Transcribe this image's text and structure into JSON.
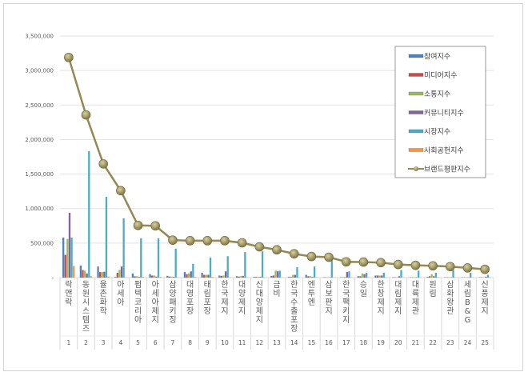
{
  "chart_data": {
    "type": "bar+line",
    "title": "",
    "xlabel": "",
    "ylabel": "",
    "ylim": [
      0,
      3500000
    ],
    "yticks": [
      "-",
      "500,000",
      "1,000,000",
      "1,500,000",
      "2,000,000",
      "2,500,000",
      "3,000,000",
      "3,500,000"
    ],
    "grid": true,
    "legend_position": "top-right",
    "categories": [
      "락앤락",
      "동원시스템즈",
      "율촌화학",
      "아세아",
      "펌텍코리아",
      "아세아제지",
      "삼양패키징",
      "대영포장",
      "태림포장",
      "한국제지",
      "대양제지",
      "신대양제지",
      "금비",
      "한국수출포장",
      "엔투엔",
      "삼보판지",
      "한국팩키지",
      "승일",
      "한창제지",
      "대림제지",
      "대륙제관",
      "원림",
      "삼화왕관",
      "세림B&G",
      "신풍제지"
    ],
    "ranks": [
      "1",
      "2",
      "3",
      "4",
      "5",
      "6",
      "7",
      "8",
      "9",
      "10",
      "11",
      "12",
      "13",
      "14",
      "15",
      "16",
      "17",
      "18",
      "19",
      "20",
      "21",
      "22",
      "23",
      "24",
      "25"
    ],
    "series": [
      {
        "name": "참여지수",
        "type": "bar",
        "color": "#4f81bd",
        "values": [
          580000,
          175000,
          160000,
          10000,
          60000,
          50000,
          25000,
          80000,
          70000,
          30000,
          20000,
          10000,
          25000,
          10000,
          40000,
          5000,
          5000,
          20000,
          30000,
          5000,
          5000,
          10000,
          5000,
          5000,
          5000
        ]
      },
      {
        "name": "미디어지수",
        "type": "bar",
        "color": "#c0504d",
        "values": [
          330000,
          110000,
          80000,
          70000,
          20000,
          30000,
          15000,
          50000,
          40000,
          25000,
          15000,
          10000,
          30000,
          10000,
          20000,
          5000,
          5000,
          20000,
          30000,
          5000,
          5000,
          20000,
          5000,
          5000,
          5000
        ]
      },
      {
        "name": "소통지수",
        "type": "bar",
        "color": "#9bbb59",
        "values": [
          560000,
          100000,
          80000,
          110000,
          20000,
          30000,
          15000,
          60000,
          40000,
          30000,
          20000,
          10000,
          100000,
          40000,
          20000,
          5000,
          10000,
          60000,
          30000,
          5000,
          5000,
          50000,
          5000,
          5000,
          5000
        ]
      },
      {
        "name": "커뮤니티지수",
        "type": "bar",
        "color": "#8064a2",
        "values": [
          940000,
          60000,
          85000,
          160000,
          10000,
          15000,
          10000,
          90000,
          40000,
          90000,
          25000,
          10000,
          90000,
          40000,
          10000,
          5000,
          80000,
          50000,
          30000,
          20000,
          5000,
          20000,
          5000,
          5000,
          10000
        ]
      },
      {
        "name": "시장지수",
        "type": "bar",
        "color": "#4bacc6",
        "values": [
          580000,
          1830000,
          1170000,
          860000,
          570000,
          570000,
          420000,
          200000,
          290000,
          310000,
          370000,
          380000,
          100000,
          150000,
          160000,
          260000,
          90000,
          70000,
          70000,
          110000,
          100000,
          70000,
          110000,
          70000,
          40000
        ]
      },
      {
        "name": "사회공헌지수",
        "type": "bar",
        "color": "#f79646",
        "values": [
          170000,
          20000,
          15000,
          5000,
          10000,
          10000,
          5000,
          10000,
          10000,
          5000,
          5000,
          5000,
          5000,
          5000,
          5000,
          5000,
          5000,
          5000,
          5000,
          5000,
          5000,
          5000,
          5000,
          5000,
          5000
        ]
      },
      {
        "name": "브랜드평판지수",
        "type": "line",
        "color": "#938953",
        "values": [
          3190000,
          2357000,
          1647000,
          1260000,
          756000,
          750000,
          543000,
          535000,
          535000,
          535000,
          504000,
          446000,
          403000,
          345000,
          306000,
          295000,
          229000,
          225000,
          217000,
          190000,
          178000,
          171000,
          159000,
          140000,
          120000
        ]
      }
    ]
  }
}
